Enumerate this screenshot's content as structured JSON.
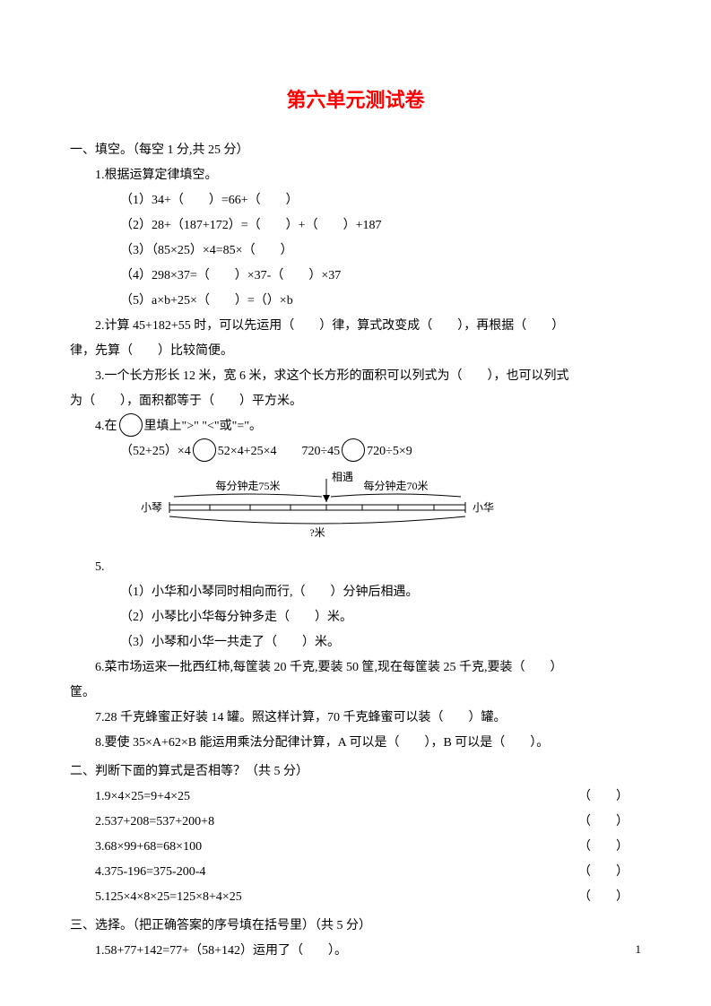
{
  "title": "第六单元测试卷",
  "pageNumber": "1",
  "s1": {
    "heading": "一、填空。（每空 1 分,共 25 分）",
    "q1": {
      "stem": "1.根据运算定律填空。",
      "a": "（1）34+（　　）=66+（　　）",
      "b": "（2）28+（187+172）=（　　）+（　　）+187",
      "c": "（3）（85×25）×4=85×（　　）",
      "d": "（4）298×37=（　　）×37-（　　）×37",
      "e": "（5）a×b+25×（　　）=（）×b"
    },
    "q2a": "2.计算 45+182+55 时，可以先运用（　　）律，算式改变成（　　），再根据（　　）",
    "q2b": "律，先算（　　）比较简便。",
    "q3a": "3.一个长方形长 12 米，宽 6 米，求这个长方形的面积可以列式为（　　），也可以列式",
    "q3b": "为（　　），面积都等于（　　）平方米。",
    "q4a": "4.在",
    "q4b": "里填上\">\"  \"<\"或\"=\"。",
    "q4c_left": "（52+25）×4",
    "q4c_mid": "52×4+25×4　　720÷45",
    "q4c_right": "720÷5×9",
    "diagram": {
      "leftName": "小琴",
      "rightName": "小华",
      "leftSpeed": "每分钟走75米",
      "rightSpeed": "每分钟走70米",
      "meet": "相遇",
      "unknown": "?米",
      "textColor": "#000000",
      "lineColor": "#000000",
      "braceColor": "#000000",
      "fontSize": 12
    },
    "q5label": "5.",
    "q5a": "（1）小华和小琴同时相向而行,（　　）分钟后相遇。",
    "q5b": "（2）小琴比小华每分钟多走（　　）米。",
    "q5c": "（3）小琴和小华一共走了（　　）米。",
    "q6": "6.菜市场运来一批西红柿,每筐装 20 千克,要装 50 筐,现在每筐装 25 千克,要装（　　）",
    "q6b": "筐。",
    "q7": "7.28 千克蜂蜜正好装 14 罐。照这样计算，70 千克蜂蜜可以装（　　）罐。",
    "q8": "8.要使 35×A+62×B 能运用乘法分配律计算，A 可以是（　　），B 可以是（　　）。"
  },
  "s2": {
    "heading": "二、判断下面的算式是否相等？（共 5 分）",
    "items": [
      "1.9×4×25=9+4×25",
      "2.537+208=537+200+8",
      "3.68×99+68=68×100",
      "4.375-196=375-200-4",
      "5.125×4×8×25=125×8+4×25"
    ],
    "paren": "（　　）"
  },
  "s3": {
    "heading": "三、选择。（把正确答案的序号填在括号里）（共 5 分）",
    "q1": "1.58+77+142=77+（58+142）运用了（　　）。"
  }
}
